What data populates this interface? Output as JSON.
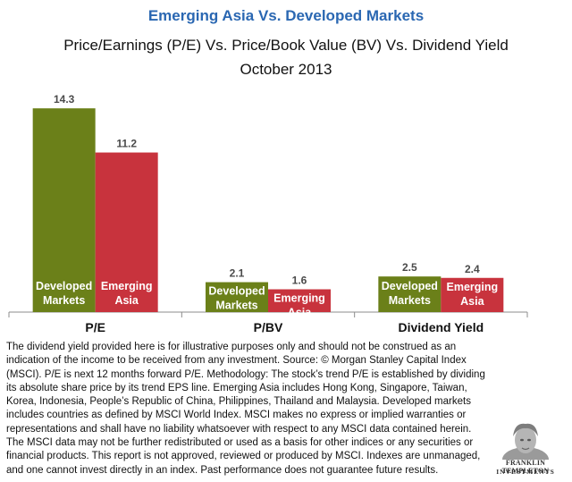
{
  "header": {
    "title": "Emerging Asia Vs. Developed Markets",
    "subtitle": "Price/Earnings (P/E) Vs. Price/Book Value (BV)  Vs. Dividend Yield",
    "date": "October 2013"
  },
  "chart_data": {
    "type": "bar",
    "categories": [
      "P/E",
      "P/BV",
      "Dividend Yield"
    ],
    "series": [
      {
        "name": "Developed Markets",
        "label_lines": [
          "Developed",
          "Markets"
        ],
        "color": "#6b8019",
        "values": [
          14.3,
          2.1,
          2.5
        ]
      },
      {
        "name": "Emerging Asia",
        "label_lines": [
          "Emerging",
          "Asia"
        ],
        "color": "#c8333d",
        "values": [
          11.2,
          1.6,
          2.4
        ]
      }
    ],
    "ylim": [
      0,
      15
    ],
    "grid": false,
    "value_labels": [
      [
        "14.3",
        "2.1",
        "2.5"
      ],
      [
        "11.2",
        "1.6",
        "2.4"
      ]
    ]
  },
  "footnote": "The dividend yield provided here is for illustrative purposes only and should not be construed as an indication of the income to be received from any investment. Source: © Morgan Stanley Capital Index (MSCI). P/E is next 12 months forward P/E. Methodology: The stock’s  trend P/E is established by dividing its absolute share price by its trend EPS line. Emerging Asia includes Hong Kong, Singapore, Taiwan, Korea, Indonesia, People’s Republic of China, Philippines, Thailand and Malaysia. Developed markets includes countries as defined by MSCI World Index. MSCI makes no express or implied warranties or representations and shall have no liability whatsoever with respect to any MSCI data contained  herein. The MSCI data may not be further redistributed or used as a basis for other indices or any securities or financial products. This report is not approved, reviewed or produced by MSCI. Indexes are unmanaged,  and one cannot invest directly in an index. Past performance does not guarantee future results.",
  "brand": {
    "line1": "FRANKLIN TEMPLETON",
    "line2": "INVESTMENTS"
  }
}
